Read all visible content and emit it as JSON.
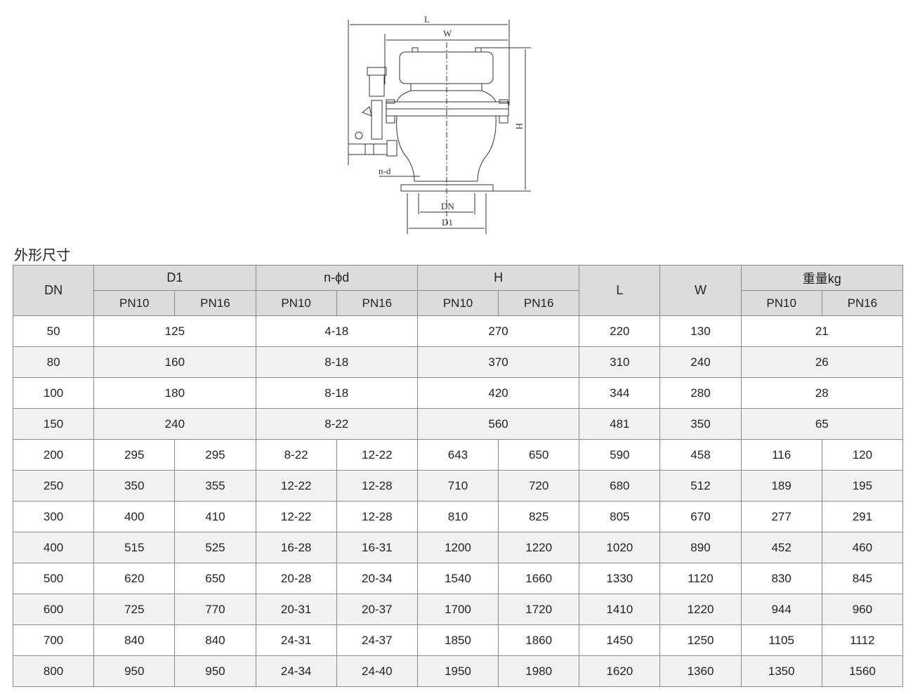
{
  "drawing": {
    "labels": {
      "L": "L",
      "W": "W",
      "H": "H",
      "nd": "n-d",
      "DN": "DN",
      "D1": "D1"
    }
  },
  "section_title": "外形尺寸",
  "table": {
    "headers": {
      "dn": "DN",
      "d1": "D1",
      "nd": "n-ϕd",
      "h": "H",
      "l": "L",
      "w": "W",
      "weight": "重量kg",
      "pn10": "PN10",
      "pn16": "PN16"
    },
    "rows": [
      {
        "dn": "50",
        "d1": [
          "125"
        ],
        "nd": [
          "4-18"
        ],
        "h": [
          "270"
        ],
        "l": "220",
        "w": "130",
        "weight": [
          "21"
        ]
      },
      {
        "dn": "80",
        "d1": [
          "160"
        ],
        "nd": [
          "8-18"
        ],
        "h": [
          "370"
        ],
        "l": "310",
        "w": "240",
        "weight": [
          "26"
        ]
      },
      {
        "dn": "100",
        "d1": [
          "180"
        ],
        "nd": [
          "8-18"
        ],
        "h": [
          "420"
        ],
        "l": "344",
        "w": "280",
        "weight": [
          "28"
        ]
      },
      {
        "dn": "150",
        "d1": [
          "240"
        ],
        "nd": [
          "8-22"
        ],
        "h": [
          "560"
        ],
        "l": "481",
        "w": "350",
        "weight": [
          "65"
        ]
      },
      {
        "dn": "200",
        "d1": [
          "295",
          "295"
        ],
        "nd": [
          "8-22",
          "12-22"
        ],
        "h": [
          "643",
          "650"
        ],
        "l": "590",
        "w": "458",
        "weight": [
          "116",
          "120"
        ]
      },
      {
        "dn": "250",
        "d1": [
          "350",
          "355"
        ],
        "nd": [
          "12-22",
          "12-28"
        ],
        "h": [
          "710",
          "720"
        ],
        "l": "680",
        "w": "512",
        "weight": [
          "189",
          "195"
        ]
      },
      {
        "dn": "300",
        "d1": [
          "400",
          "410"
        ],
        "nd": [
          "12-22",
          "12-28"
        ],
        "h": [
          "810",
          "825"
        ],
        "l": "805",
        "w": "670",
        "weight": [
          "277",
          "291"
        ]
      },
      {
        "dn": "400",
        "d1": [
          "515",
          "525"
        ],
        "nd": [
          "16-28",
          "16-31"
        ],
        "h": [
          "1200",
          "1220"
        ],
        "l": "1020",
        "w": "890",
        "weight": [
          "452",
          "460"
        ]
      },
      {
        "dn": "500",
        "d1": [
          "620",
          "650"
        ],
        "nd": [
          "20-28",
          "20-34"
        ],
        "h": [
          "1540",
          "1660"
        ],
        "l": "1330",
        "w": "1120",
        "weight": [
          "830",
          "845"
        ]
      },
      {
        "dn": "600",
        "d1": [
          "725",
          "770"
        ],
        "nd": [
          "20-31",
          "20-37"
        ],
        "h": [
          "1700",
          "1720"
        ],
        "l": "1410",
        "w": "1220",
        "weight": [
          "944",
          "960"
        ]
      },
      {
        "dn": "700",
        "d1": [
          "840",
          "840"
        ],
        "nd": [
          "24-31",
          "24-37"
        ],
        "h": [
          "1850",
          "1860"
        ],
        "l": "1450",
        "w": "1250",
        "weight": [
          "1105",
          "1112"
        ]
      },
      {
        "dn": "800",
        "d1": [
          "950",
          "950"
        ],
        "nd": [
          "24-34",
          "24-40"
        ],
        "h": [
          "1950",
          "1980"
        ],
        "l": "1620",
        "w": "1360",
        "weight": [
          "1350",
          "1560"
        ]
      }
    ]
  }
}
